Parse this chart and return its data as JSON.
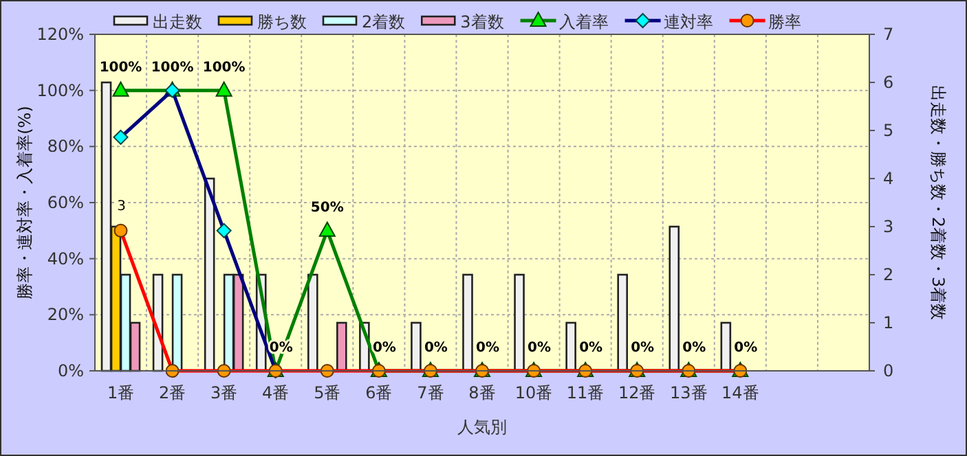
{
  "chart_data": {
    "type": "bar",
    "xlabel": "人気別",
    "ylabel": "勝率・連対率・入着率(%)",
    "y2label": "出走数・勝ち数・2着数・3着数",
    "categories": [
      "1番",
      "2番",
      "3番",
      "4番",
      "5番",
      "6番",
      "7番",
      "8番",
      "10番",
      "11番",
      "12番",
      "13番",
      "14番",
      null,
      null
    ],
    "series": [
      {
        "name": "出走数",
        "axis": "y2",
        "color": "#f0f0f0",
        "values": [
          6,
          2,
          4,
          2,
          2,
          1,
          1,
          2,
          2,
          1,
          2,
          3,
          1,
          null,
          null
        ]
      },
      {
        "name": "勝ち数",
        "axis": "y2",
        "color": "#ffcc00",
        "values": [
          3,
          0,
          0,
          0,
          0,
          0,
          0,
          0,
          0,
          0,
          0,
          0,
          0,
          null,
          null
        ],
        "value_labels": [
          "3",
          null,
          null,
          null,
          null,
          null,
          null,
          null,
          null,
          null,
          null,
          null,
          null,
          null,
          null
        ]
      },
      {
        "name": "2着数",
        "axis": "y2",
        "color": "#ccffff",
        "values": [
          2,
          2,
          2,
          0,
          0,
          0,
          0,
          0,
          0,
          0,
          0,
          0,
          0,
          null,
          null
        ]
      },
      {
        "name": "3着数",
        "axis": "y2",
        "color": "#ee99bb",
        "values": [
          1,
          0,
          2,
          0,
          1,
          0,
          0,
          0,
          0,
          0,
          0,
          0,
          0,
          null,
          null
        ]
      },
      {
        "name": "入着率",
        "type": "line",
        "color": "#008000",
        "marker": "triangle",
        "values": [
          100,
          100,
          100,
          0,
          50,
          0,
          0,
          0,
          0,
          0,
          0,
          0,
          0,
          null,
          null
        ],
        "value_labels": [
          "100%",
          "100%",
          "100%",
          "0%",
          "50%",
          "0%",
          "0%",
          "0%",
          "0%",
          "0%",
          "0%",
          "0%",
          "0%",
          null,
          null
        ]
      },
      {
        "name": "連対率",
        "type": "line",
        "color": "#000080",
        "marker": "diamond",
        "values": [
          83.3,
          100,
          50,
          0,
          null,
          null,
          null,
          null,
          null,
          null,
          null,
          null,
          null,
          null,
          null
        ]
      },
      {
        "name": "勝率",
        "type": "line",
        "color": "#ff0000",
        "marker": "circle",
        "values": [
          50,
          0,
          0,
          0,
          0,
          0,
          0,
          0,
          0,
          0,
          0,
          0,
          0,
          null,
          null
        ]
      }
    ],
    "ylim": [
      0,
      120
    ],
    "yticks": [
      {
        "value": 0,
        "label": "0%"
      },
      {
        "value": 20,
        "label": "20%"
      },
      {
        "value": 40,
        "label": "40%"
      },
      {
        "value": 60,
        "label": "60%"
      },
      {
        "value": 80,
        "label": "80%"
      },
      {
        "value": 100,
        "label": "100%"
      },
      {
        "value": 120,
        "label": "120%"
      }
    ],
    "y2lim": [
      0,
      7
    ],
    "y2ticks": [
      0,
      1,
      2,
      3,
      4,
      5,
      6,
      7
    ],
    "grid": true,
    "legend": "top"
  }
}
